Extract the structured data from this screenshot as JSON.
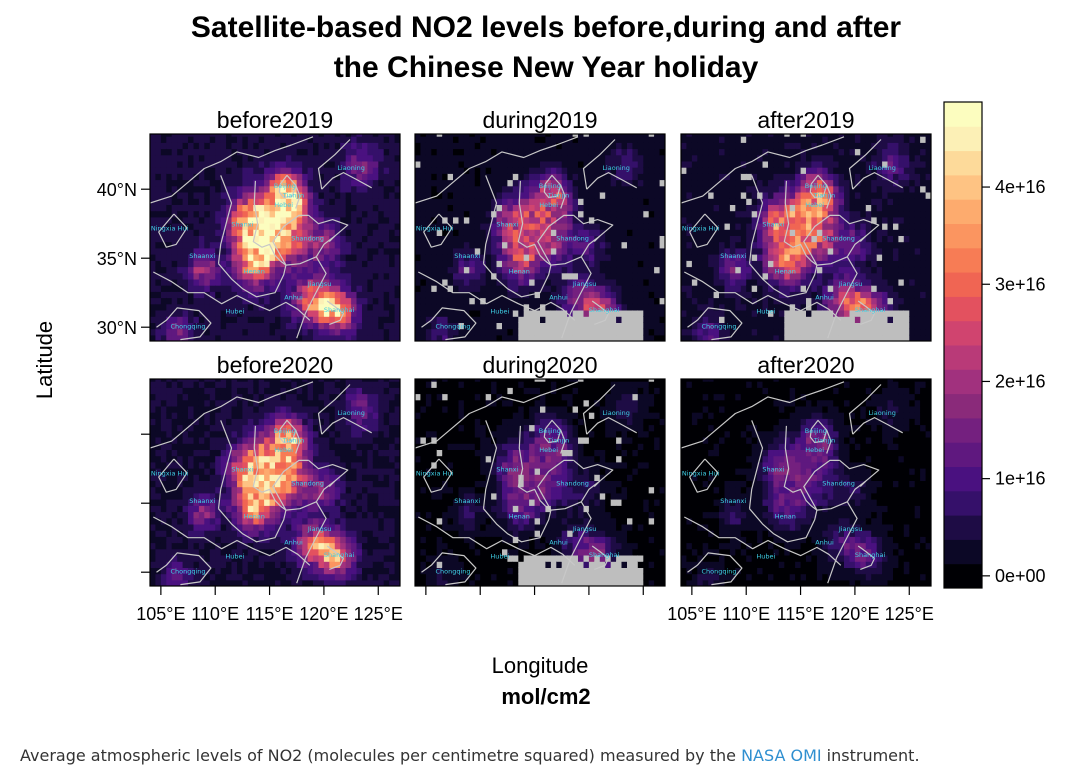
{
  "chart_data": {
    "type": "heatmap",
    "title_line1": "Satellite-based NO2 levels before,during and after",
    "title_line2": "the Chinese New Year holiday",
    "xlabel": "Longitude",
    "ylabel": "Latitude",
    "x_ticks": [
      "105°E",
      "110°E",
      "115°E",
      "120°E",
      "125°E"
    ],
    "x_tick_values": [
      105,
      110,
      115,
      120,
      125
    ],
    "y_ticks": [
      "40°N",
      "35°N",
      "30°N"
    ],
    "y_tick_values": [
      40,
      35,
      30
    ],
    "xlim": [
      104,
      127
    ],
    "ylim": [
      29,
      44
    ],
    "colorbar": {
      "label": "mol/cm2",
      "min": 0,
      "max": 5e+16,
      "tick_labels": [
        "0e+00",
        "1e+16",
        "2e+16",
        "3e+16",
        "4e+16"
      ],
      "tick_values": [
        0,
        1e+16,
        2e+16,
        3e+16,
        4e+16
      ],
      "colors": [
        "#000004",
        "#0c0826",
        "#1e0c45",
        "#35106a",
        "#4a1180",
        "#5f187f",
        "#74207f",
        "#8a2a7a",
        "#a1317e",
        "#b93a78",
        "#d0446f",
        "#e3515f",
        "#f06553",
        "#f77c55",
        "#fb9560",
        "#fdab6e",
        "#fec383",
        "#fdda9a",
        "#fcf0b6",
        "#fcfdbf"
      ]
    },
    "no_data_color": "#bebebe",
    "panels": [
      {
        "name": "before2019",
        "row": 0,
        "col": 0,
        "mean_level": 1.6e+16,
        "peak_level": 4.6e+16,
        "no_data": false
      },
      {
        "name": "during2019",
        "row": 0,
        "col": 1,
        "mean_level": 9000000000000000.0,
        "peak_level": 2.6e+16,
        "no_data": true
      },
      {
        "name": "after2019",
        "row": 0,
        "col": 2,
        "mean_level": 1.2e+16,
        "peak_level": 3.4e+16,
        "no_data": true
      },
      {
        "name": "before2020",
        "row": 1,
        "col": 0,
        "mean_level": 1.4e+16,
        "peak_level": 4e+16,
        "no_data": false
      },
      {
        "name": "during2020",
        "row": 1,
        "col": 1,
        "mean_level": 6000000000000000.0,
        "peak_level": 1.6e+16,
        "no_data": true
      },
      {
        "name": "after2020",
        "row": 1,
        "col": 2,
        "mean_level": 6000000000000000.0,
        "peak_level": 1.5e+16,
        "no_data": false
      }
    ],
    "province_labels": [
      {
        "name": "Liaoning",
        "lon": 122.5,
        "lat": 41.4
      },
      {
        "name": "Beijing",
        "lon": 116.4,
        "lat": 40.1
      },
      {
        "name": "Tianjin",
        "lon": 117.2,
        "lat": 39.4
      },
      {
        "name": "Hebei",
        "lon": 116.3,
        "lat": 38.7
      },
      {
        "name": "Shanxi",
        "lon": 112.5,
        "lat": 37.3
      },
      {
        "name": "Ningxia Hui",
        "lon": 105.8,
        "lat": 37.0
      },
      {
        "name": "Shandong",
        "lon": 118.5,
        "lat": 36.3
      },
      {
        "name": "Shaanxi",
        "lon": 108.8,
        "lat": 35.0
      },
      {
        "name": "Henan",
        "lon": 113.6,
        "lat": 33.9
      },
      {
        "name": "Jiangsu",
        "lon": 119.6,
        "lat": 33.0
      },
      {
        "name": "Anhui",
        "lon": 117.2,
        "lat": 32.0
      },
      {
        "name": "Hubei",
        "lon": 111.8,
        "lat": 31.0
      },
      {
        "name": "Shanghai",
        "lon": 121.4,
        "lat": 31.1
      },
      {
        "name": "Chongqing",
        "lon": 107.5,
        "lat": 29.9
      }
    ]
  },
  "caption": {
    "text_before": "Average atmospheric levels of NO2 (molecules per centimetre squared) measured by the ",
    "link_text": "NASA OMI",
    "text_after": " instrument."
  }
}
